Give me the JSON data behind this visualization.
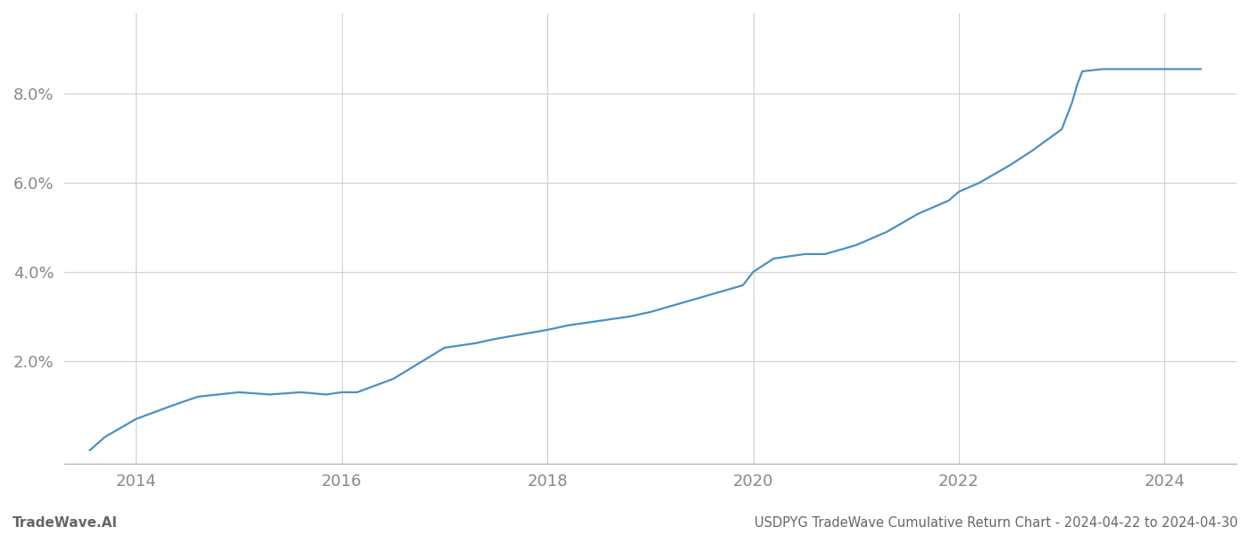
{
  "title": "USDPYG TradeWave Cumulative Return Chart - 2024-04-22 to 2024-04-30",
  "watermark": "TradeWave.AI",
  "line_color": "#4a90c4",
  "line_width": 1.6,
  "background_color": "#ffffff",
  "grid_color": "#d0d0d0",
  "x_years": [
    2013.55,
    2013.7,
    2014.0,
    2014.35,
    2014.6,
    2015.0,
    2015.3,
    2015.6,
    2015.85,
    2016.0,
    2016.15,
    2016.5,
    2017.0,
    2017.3,
    2017.5,
    2018.0,
    2018.2,
    2018.5,
    2018.8,
    2019.0,
    2019.3,
    2019.6,
    2019.9,
    2020.0,
    2020.2,
    2020.5,
    2020.7,
    2021.0,
    2021.3,
    2021.6,
    2021.9,
    2022.0,
    2022.2,
    2022.5,
    2022.7,
    2023.0,
    2023.1,
    2023.15,
    2023.2,
    2023.4,
    2023.6,
    2024.0,
    2024.35
  ],
  "y_values": [
    0.0,
    0.003,
    0.007,
    0.01,
    0.012,
    0.013,
    0.0125,
    0.013,
    0.0125,
    0.013,
    0.013,
    0.016,
    0.023,
    0.024,
    0.025,
    0.027,
    0.028,
    0.029,
    0.03,
    0.031,
    0.033,
    0.035,
    0.037,
    0.04,
    0.043,
    0.044,
    0.044,
    0.046,
    0.049,
    0.053,
    0.056,
    0.058,
    0.06,
    0.064,
    0.067,
    0.072,
    0.078,
    0.082,
    0.085,
    0.0855,
    0.0855,
    0.0855,
    0.0855
  ],
  "xlim": [
    2013.3,
    2024.7
  ],
  "ylim": [
    -0.003,
    0.098
  ],
  "yticks": [
    0.02,
    0.04,
    0.06,
    0.08
  ],
  "ytick_labels": [
    "2.0%",
    "4.0%",
    "6.0%",
    "8.0%"
  ],
  "xticks": [
    2014,
    2016,
    2018,
    2020,
    2022,
    2024
  ],
  "xtick_labels": [
    "2014",
    "2016",
    "2018",
    "2020",
    "2022",
    "2024"
  ],
  "tick_fontsize": 13,
  "title_fontsize": 10.5,
  "watermark_fontsize": 11
}
